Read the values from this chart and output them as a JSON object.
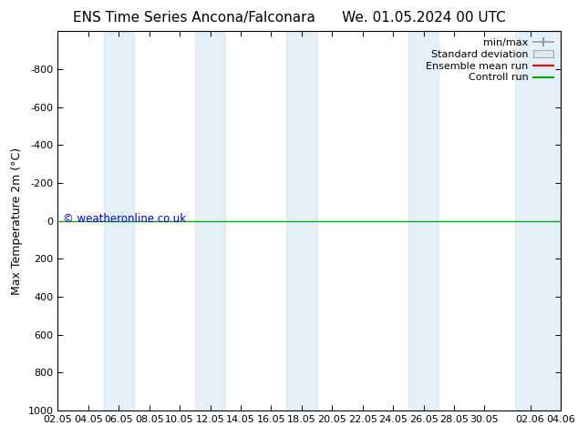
{
  "title_left": "ENS Time Series Ancona/Falconara",
  "title_right": "We. 01.05.2024 00 UTC",
  "ylabel": "Max Temperature 2m (°C)",
  "ylim_top": -1000,
  "ylim_bottom": 1000,
  "yticks": [
    -800,
    -600,
    -400,
    -200,
    0,
    200,
    400,
    600,
    800,
    1000
  ],
  "xlim_start": 0,
  "xlim_end": 33,
  "xtick_labels": [
    "02.05",
    "04.05",
    "06.05",
    "08.05",
    "10.05",
    "12.05",
    "14.05",
    "16.05",
    "18.05",
    "20.05",
    "22.05",
    "24.05",
    "26.05",
    "28.05",
    "30.05",
    "02.06",
    "04.06"
  ],
  "xtick_positions": [
    0,
    2,
    4,
    6,
    8,
    10,
    12,
    14,
    16,
    18,
    20,
    22,
    24,
    26,
    28,
    31,
    33
  ],
  "bg_color": "#ffffff",
  "plot_bg_color": "#ffffff",
  "shade_color": "#cce5f5",
  "shade_alpha": 0.55,
  "shade_bands": [
    [
      3,
      5
    ],
    [
      9,
      11
    ],
    [
      15,
      17
    ],
    [
      23,
      25
    ],
    [
      30,
      33
    ]
  ],
  "control_run_y": 0,
  "control_run_color": "#00aa00",
  "ensemble_mean_color": "#ff0000",
  "minmax_color": "#999999",
  "stddev_facecolor": "#dde8f0",
  "stddev_edgecolor": "#aaaaaa",
  "watermark": "© weatheronline.co.uk",
  "watermark_color": "#0000cc",
  "title_fontsize": 11,
  "axis_label_fontsize": 9,
  "tick_fontsize": 8,
  "legend_fontsize": 8
}
